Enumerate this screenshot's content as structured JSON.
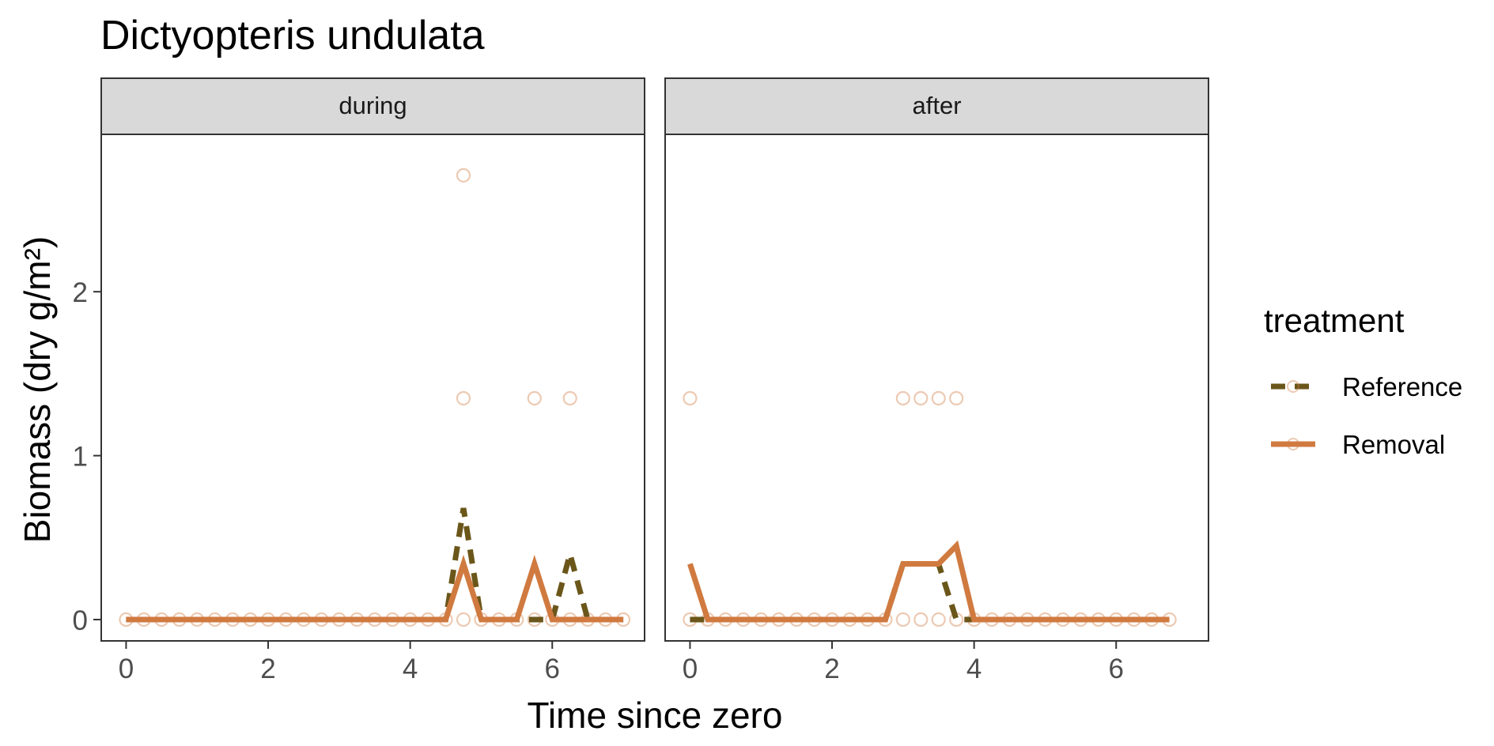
{
  "chart_data": {
    "type": "line",
    "title": "Dictyopteris undulata",
    "xlabel": "Time since zero",
    "ylabel": "Biomass (dry g/m²)",
    "ylim": [
      -0.13,
      2.96
    ],
    "y_ticks": [
      0,
      1,
      2
    ],
    "grid": false,
    "colors": {
      "Reference": "#6b561a",
      "Removal": "#d07a40"
    },
    "legend": {
      "title": "treatment",
      "position": "right",
      "entries": [
        "Reference",
        "Removal"
      ]
    },
    "panels": [
      {
        "label": "during",
        "xlim": [
          -0.35,
          7.3
        ],
        "x_ticks": [
          0,
          2,
          4,
          6
        ],
        "series": [
          {
            "name": "Reference",
            "style": "dashed",
            "points": [
              [
                0,
                0
              ],
              [
                4.5,
                0
              ],
              [
                4.75,
                0.68
              ],
              [
                5.0,
                0
              ],
              [
                5.25,
                0
              ],
              [
                5.5,
                0
              ],
              [
                5.75,
                0
              ],
              [
                6.0,
                0
              ],
              [
                6.25,
                0.4
              ],
              [
                6.5,
                0
              ],
              [
                6.75,
                0
              ],
              [
                7.0,
                0
              ]
            ]
          },
          {
            "name": "Removal",
            "style": "solid",
            "points": [
              [
                0,
                0
              ],
              [
                4.5,
                0
              ],
              [
                4.75,
                0.34
              ],
              [
                5.0,
                0
              ],
              [
                5.25,
                0
              ],
              [
                5.5,
                0
              ],
              [
                5.75,
                0.34
              ],
              [
                6.0,
                0
              ],
              [
                6.25,
                0
              ],
              [
                6.5,
                0
              ],
              [
                6.75,
                0
              ],
              [
                7.0,
                0
              ]
            ]
          }
        ],
        "raw_points": [
          [
            0,
            0
          ],
          [
            0.25,
            0
          ],
          [
            0.5,
            0
          ],
          [
            0.75,
            0
          ],
          [
            1.0,
            0
          ],
          [
            1.25,
            0
          ],
          [
            1.5,
            0
          ],
          [
            1.75,
            0
          ],
          [
            2.0,
            0
          ],
          [
            2.25,
            0
          ],
          [
            2.5,
            0
          ],
          [
            2.75,
            0
          ],
          [
            3.0,
            0
          ],
          [
            3.25,
            0
          ],
          [
            3.5,
            0
          ],
          [
            3.75,
            0
          ],
          [
            4.0,
            0
          ],
          [
            4.25,
            0
          ],
          [
            4.5,
            0
          ],
          [
            4.75,
            0
          ],
          [
            5.0,
            0
          ],
          [
            5.25,
            0
          ],
          [
            5.5,
            0
          ],
          [
            5.75,
            0
          ],
          [
            6.0,
            0
          ],
          [
            6.25,
            0
          ],
          [
            6.5,
            0
          ],
          [
            6.75,
            0
          ],
          [
            7.0,
            0
          ],
          [
            4.75,
            2.71
          ],
          [
            4.75,
            1.35
          ],
          [
            5.75,
            1.35
          ],
          [
            6.25,
            1.35
          ]
        ]
      },
      {
        "label": "after",
        "xlim": [
          -0.35,
          7.3
        ],
        "x_ticks": [
          0,
          2,
          4,
          6
        ],
        "series": [
          {
            "name": "Reference",
            "style": "dashed",
            "points": [
              [
                0,
                0
              ],
              [
                0.25,
                0
              ],
              [
                2.75,
                0
              ],
              [
                3.0,
                0.34
              ],
              [
                3.25,
                0.34
              ],
              [
                3.5,
                0.34
              ],
              [
                3.75,
                0
              ],
              [
                4.0,
                0
              ],
              [
                6.75,
                0
              ]
            ]
          },
          {
            "name": "Removal",
            "style": "solid",
            "points": [
              [
                0,
                0.34
              ],
              [
                0.25,
                0
              ],
              [
                2.75,
                0
              ],
              [
                3.0,
                0.34
              ],
              [
                3.25,
                0.34
              ],
              [
                3.5,
                0.34
              ],
              [
                3.75,
                0.45
              ],
              [
                4.0,
                0
              ],
              [
                6.75,
                0
              ]
            ]
          }
        ],
        "raw_points": [
          [
            0,
            0
          ],
          [
            0.25,
            0
          ],
          [
            0.5,
            0
          ],
          [
            0.75,
            0
          ],
          [
            1.0,
            0
          ],
          [
            1.25,
            0
          ],
          [
            1.5,
            0
          ],
          [
            1.75,
            0
          ],
          [
            2.0,
            0
          ],
          [
            2.25,
            0
          ],
          [
            2.5,
            0
          ],
          [
            2.75,
            0
          ],
          [
            3.0,
            0
          ],
          [
            3.25,
            0
          ],
          [
            3.5,
            0
          ],
          [
            3.75,
            0
          ],
          [
            4.0,
            0
          ],
          [
            4.25,
            0
          ],
          [
            4.5,
            0
          ],
          [
            4.75,
            0
          ],
          [
            5.0,
            0
          ],
          [
            5.25,
            0
          ],
          [
            5.5,
            0
          ],
          [
            5.75,
            0
          ],
          [
            6.0,
            0
          ],
          [
            6.25,
            0
          ],
          [
            6.5,
            0
          ],
          [
            6.75,
            0
          ],
          [
            0,
            1.35
          ],
          [
            3.0,
            1.35
          ],
          [
            3.25,
            1.35
          ],
          [
            3.5,
            1.35
          ],
          [
            3.75,
            1.35
          ]
        ]
      }
    ]
  }
}
